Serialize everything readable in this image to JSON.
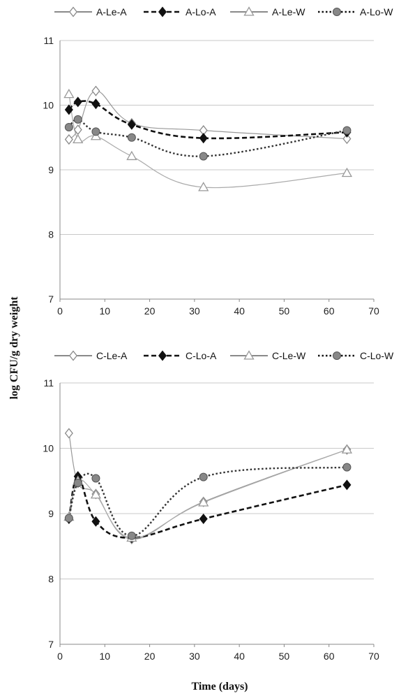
{
  "figure": {
    "shared_ylabel": "log CFU/g dry weight",
    "shared_xlabel": "Time (days)"
  },
  "chart_data": [
    {
      "type": "line",
      "xlim": [
        0,
        70
      ],
      "ylim": [
        7,
        11
      ],
      "xticks": [
        "0",
        "10",
        "20",
        "30",
        "40",
        "50",
        "60",
        "70"
      ],
      "yticks": [
        "7",
        "8",
        "9",
        "10",
        "11"
      ],
      "grid": "horizontal",
      "legend_position": "top",
      "series": [
        {
          "name": "A-Le-A",
          "marker": "diamond-open",
          "line": "solid",
          "color": "#999999",
          "x": [
            2,
            4,
            8,
            16,
            32,
            64
          ],
          "y": [
            9.47,
            9.62,
            10.22,
            9.72,
            9.61,
            9.48
          ]
        },
        {
          "name": "A-Lo-A",
          "marker": "diamond-filled",
          "line": "dashed",
          "color": "#111111",
          "x": [
            2,
            4,
            8,
            16,
            32,
            64
          ],
          "y": [
            9.93,
            10.05,
            10.02,
            9.7,
            9.49,
            9.58
          ]
        },
        {
          "name": "A-Le-W",
          "marker": "triangle-open",
          "line": "solid",
          "color": "#aaaaaa",
          "x": [
            2,
            4,
            8,
            16,
            32,
            64
          ],
          "y": [
            10.17,
            9.47,
            9.52,
            9.21,
            8.73,
            8.95
          ]
        },
        {
          "name": "A-Lo-W",
          "marker": "circle-filled",
          "line": "dotted",
          "color": "#333333",
          "x": [
            2,
            4,
            8,
            16,
            32,
            64
          ],
          "y": [
            9.66,
            9.78,
            9.59,
            9.5,
            9.21,
            9.61
          ]
        }
      ]
    },
    {
      "type": "line",
      "xlim": [
        0,
        70
      ],
      "ylim": [
        7,
        11
      ],
      "xticks": [
        "0",
        "10",
        "20",
        "30",
        "40",
        "50",
        "60",
        "70"
      ],
      "yticks": [
        "7",
        "8",
        "9",
        "10",
        "11"
      ],
      "grid": "horizontal",
      "legend_position": "top",
      "series": [
        {
          "name": "C-Le-A",
          "marker": "diamond-open",
          "line": "solid",
          "color": "#999999",
          "x": [
            2,
            4,
            8,
            16,
            32,
            64
          ],
          "y": [
            10.23,
            9.47,
            9.3,
            8.61,
            9.18,
            9.98
          ]
        },
        {
          "name": "C-Lo-A",
          "marker": "diamond-filled",
          "line": "dashed",
          "color": "#111111",
          "x": [
            2,
            4,
            8,
            16,
            32,
            64
          ],
          "y": [
            8.92,
            9.57,
            8.88,
            8.63,
            8.92,
            9.44
          ]
        },
        {
          "name": "C-Le-W",
          "marker": "triangle-open",
          "line": "solid",
          "color": "#aaaaaa",
          "x": [
            2,
            4,
            8,
            16,
            32,
            64
          ],
          "y": [
            8.95,
            9.5,
            9.29,
            8.63,
            9.17,
            9.98
          ]
        },
        {
          "name": "C-Lo-W",
          "marker": "circle-filled",
          "line": "dotted",
          "color": "#333333",
          "x": [
            2,
            4,
            8,
            16,
            32,
            64
          ],
          "y": [
            8.93,
            9.47,
            9.54,
            8.66,
            9.56,
            9.71
          ]
        }
      ]
    }
  ]
}
